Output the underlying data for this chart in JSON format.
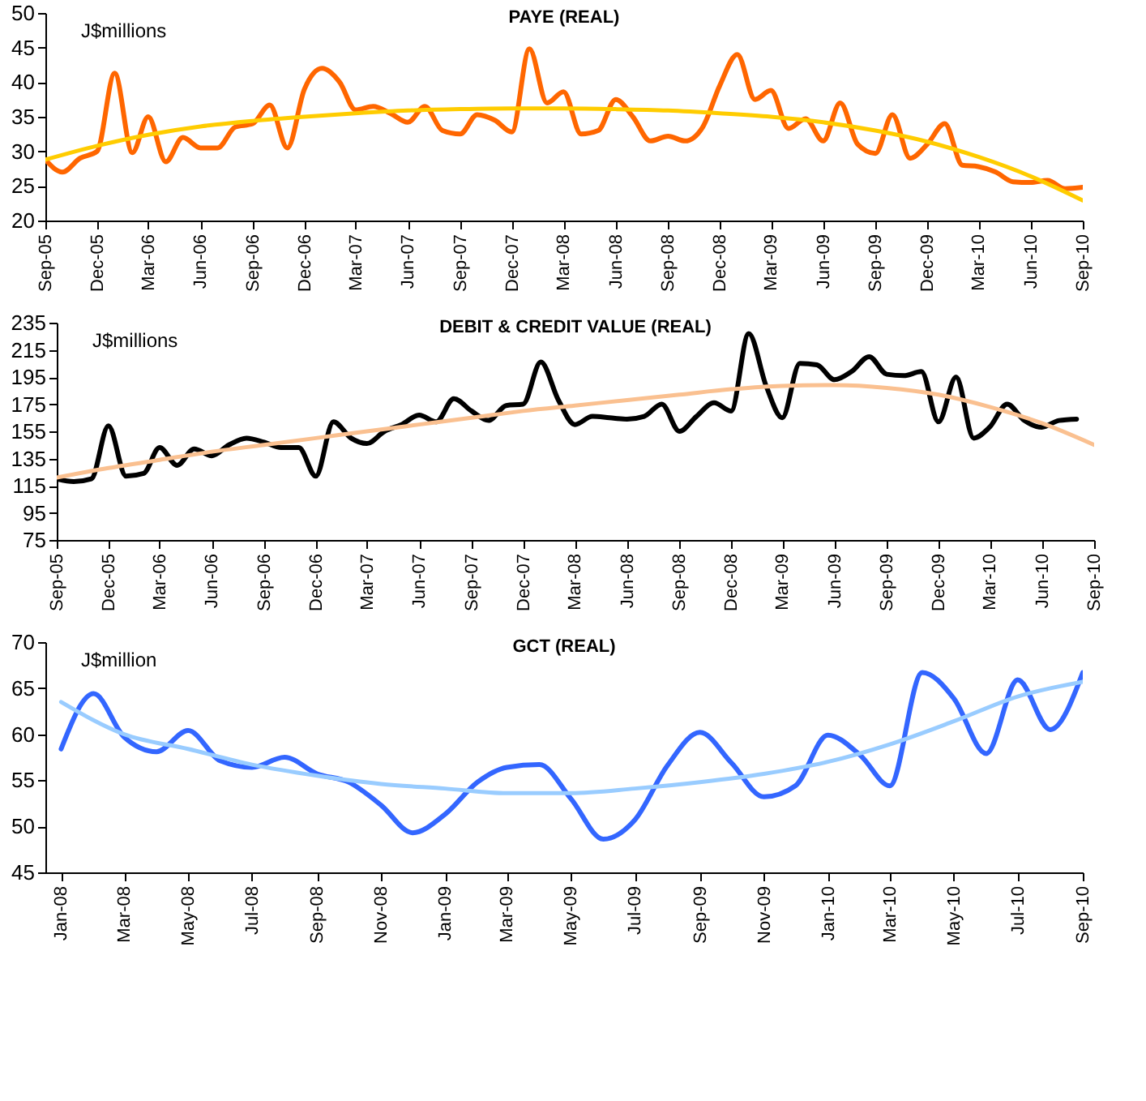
{
  "chart_data": [
    {
      "type": "line",
      "title": "PAYE (REAL)",
      "annotations": [
        "J$millions"
      ],
      "x": [
        "2005-09",
        "2005-10",
        "2005-11",
        "2005-12",
        "2006-01",
        "2006-02",
        "2006-03",
        "2006-04",
        "2006-05",
        "2006-06",
        "2006-07",
        "2006-08",
        "2006-09",
        "2006-10",
        "2006-11",
        "2006-12",
        "2007-01",
        "2007-02",
        "2007-03",
        "2007-04",
        "2007-05",
        "2007-06",
        "2007-07",
        "2007-08",
        "2007-09",
        "2007-10",
        "2007-11",
        "2007-12",
        "2008-01",
        "2008-02",
        "2008-03",
        "2008-04",
        "2008-05",
        "2008-06",
        "2008-07",
        "2008-08",
        "2008-09",
        "2008-10",
        "2008-11",
        "2008-12",
        "2009-01",
        "2009-02",
        "2009-03",
        "2009-04",
        "2009-05",
        "2009-06",
        "2009-07",
        "2009-08",
        "2009-09",
        "2009-10",
        "2009-11",
        "2009-12",
        "2010-01",
        "2010-02",
        "2010-03",
        "2010-04",
        "2010-05",
        "2010-06",
        "2010-07",
        "2010-08",
        "2010-09"
      ],
      "series": [
        {
          "color": "#ff6600",
          "values": [
            28.8,
            27,
            29,
            30,
            41.3,
            29.8,
            35,
            28.5,
            32,
            30.5,
            30.5,
            33.5,
            34,
            36.7,
            30.5,
            39,
            42,
            40,
            36,
            36.5,
            35.5,
            34.2,
            36.5,
            33,
            32.5,
            35.3,
            34.5,
            32.8,
            44.8,
            37,
            38.6,
            32.5,
            33,
            37.5,
            35,
            31.5,
            32.2,
            31.5,
            33.5,
            39.5,
            44,
            37.5,
            38.8,
            33.3,
            34.7,
            31.5,
            37,
            31,
            29.7,
            35.3,
            29,
            31,
            34,
            28,
            27.8,
            27,
            25.6,
            25.5,
            25.8,
            24.6,
            24.8
          ]
        },
        {
          "type": "line",
          "color": "#ffcc00",
          "x": [
            "2005-09",
            "2005-12",
            "2006-03",
            "2006-06",
            "2006-09",
            "2006-12",
            "2007-03",
            "2007-06",
            "2007-09",
            "2007-12",
            "2008-03",
            "2008-06",
            "2008-09",
            "2008-12",
            "2009-03",
            "2009-06",
            "2009-09",
            "2009-12",
            "2010-03",
            "2010-06",
            "2010-09"
          ],
          "values": [
            28.8,
            30.8,
            32.4,
            33.6,
            34.4,
            35,
            35.5,
            35.9,
            36.1,
            36.2,
            36.2,
            36.1,
            35.9,
            35.5,
            35,
            34.2,
            33,
            31.4,
            29.2,
            26.4,
            22.9
          ]
        }
      ],
      "xlim": [
        "2005-09",
        "2010-09"
      ],
      "xticks": [
        {
          "value": "2005-09",
          "label": "Sep-05"
        },
        {
          "value": "2005-12",
          "label": "Dec-05"
        },
        {
          "value": "2006-03",
          "label": "Mar-06"
        },
        {
          "value": "2006-06",
          "label": "Jun-06"
        },
        {
          "value": "2006-09",
          "label": "Sep-06"
        },
        {
          "value": "2006-12",
          "label": "Dec-06"
        },
        {
          "value": "2007-03",
          "label": "Mar-07"
        },
        {
          "value": "2007-06",
          "label": "Jun-07"
        },
        {
          "value": "2007-09",
          "label": "Sep-07"
        },
        {
          "value": "2007-12",
          "label": "Dec-07"
        },
        {
          "value": "2008-03",
          "label": "Mar-08"
        },
        {
          "value": "2008-06",
          "label": "Jun-08"
        },
        {
          "value": "2008-09",
          "label": "Sep-08"
        },
        {
          "value": "2008-12",
          "label": "Dec-08"
        },
        {
          "value": "2009-03",
          "label": "Mar-09"
        },
        {
          "value": "2009-06",
          "label": "Jun-09"
        },
        {
          "value": "2009-09",
          "label": "Sep-09"
        },
        {
          "value": "2009-12",
          "label": "Dec-09"
        },
        {
          "value": "2010-03",
          "label": "Mar-10"
        },
        {
          "value": "2010-06",
          "label": "Jun-10"
        },
        {
          "value": "2010-09",
          "label": "Sep-10"
        }
      ],
      "ylim": [
        20,
        50
      ],
      "yticks": [
        20,
        25,
        30,
        35,
        40,
        45,
        50
      ]
    },
    {
      "type": "line",
      "title": "DEBIT & CREDIT VALUE (REAL)",
      "annotations": [
        "J$millions"
      ],
      "x": [
        "2005-09",
        "2005-10",
        "2005-11",
        "2005-12",
        "2006-01",
        "2006-02",
        "2006-03",
        "2006-04",
        "2006-05",
        "2006-06",
        "2006-07",
        "2006-08",
        "2006-09",
        "2006-10",
        "2006-11",
        "2006-12",
        "2007-01",
        "2007-02",
        "2007-03",
        "2007-04",
        "2007-05",
        "2007-06",
        "2007-07",
        "2007-08",
        "2007-09",
        "2007-10",
        "2007-11",
        "2007-12",
        "2008-01",
        "2008-02",
        "2008-03",
        "2008-04",
        "2008-05",
        "2008-06",
        "2008-07",
        "2008-08",
        "2008-09",
        "2008-10",
        "2008-11",
        "2008-12",
        "2009-01",
        "2009-02",
        "2009-03",
        "2009-04",
        "2009-05",
        "2009-06",
        "2009-07",
        "2009-08",
        "2009-09",
        "2009-10",
        "2009-11",
        "2009-12",
        "2010-01",
        "2010-02",
        "2010-03",
        "2010-04",
        "2010-05",
        "2010-06",
        "2010-07",
        "2010-08"
      ],
      "series": [
        {
          "color": "#000000",
          "values": [
            120,
            118,
            120,
            159,
            122,
            124,
            143,
            130,
            142,
            137,
            145,
            150,
            147,
            143,
            143,
            122,
            162,
            150,
            146,
            155,
            160,
            167,
            162,
            179,
            170,
            163,
            174,
            175,
            206,
            178,
            160,
            166,
            165,
            164,
            166,
            175,
            155,
            166,
            176,
            170,
            227,
            188,
            165,
            205,
            204,
            193,
            199,
            210,
            197,
            196,
            199,
            162,
            195,
            150,
            158,
            175,
            163,
            158,
            163,
            164
          ]
        },
        {
          "type": "line",
          "color": "#fac090",
          "x": [
            "2005-09",
            "2005-12",
            "2006-03",
            "2006-06",
            "2006-09",
            "2006-12",
            "2007-03",
            "2007-06",
            "2007-09",
            "2007-12",
            "2008-03",
            "2008-06",
            "2008-09",
            "2008-12",
            "2009-03",
            "2009-06",
            "2009-09",
            "2009-12",
            "2010-03",
            "2010-06",
            "2010-09"
          ],
          "values": [
            121,
            128,
            134,
            140,
            145,
            150,
            155,
            160,
            165,
            170,
            174,
            178,
            182,
            186,
            188.5,
            189,
            187,
            182,
            173,
            161,
            145
          ]
        }
      ],
      "xlim": [
        "2005-09",
        "2010-09"
      ],
      "xticks": [
        {
          "value": "2005-09",
          "label": "Sep-05"
        },
        {
          "value": "2005-12",
          "label": "Dec-05"
        },
        {
          "value": "2006-03",
          "label": "Mar-06"
        },
        {
          "value": "2006-06",
          "label": "Jun-06"
        },
        {
          "value": "2006-09",
          "label": "Sep-06"
        },
        {
          "value": "2006-12",
          "label": "Dec-06"
        },
        {
          "value": "2007-03",
          "label": "Mar-07"
        },
        {
          "value": "2007-06",
          "label": "Jun-07"
        },
        {
          "value": "2007-09",
          "label": "Sep-07"
        },
        {
          "value": "2007-12",
          "label": "Dec-07"
        },
        {
          "value": "2008-03",
          "label": "Mar-08"
        },
        {
          "value": "2008-06",
          "label": "Jun-08"
        },
        {
          "value": "2008-09",
          "label": "Sep-08"
        },
        {
          "value": "2008-12",
          "label": "Dec-08"
        },
        {
          "value": "2009-03",
          "label": "Mar-09"
        },
        {
          "value": "2009-06",
          "label": "Jun-09"
        },
        {
          "value": "2009-09",
          "label": "Sep-09"
        },
        {
          "value": "2009-12",
          "label": "Dec-09"
        },
        {
          "value": "2010-03",
          "label": "Mar-10"
        },
        {
          "value": "2010-06",
          "label": "Jun-10"
        },
        {
          "value": "2010-09",
          "label": "Sep-10"
        }
      ],
      "ylim": [
        75,
        235
      ],
      "yticks": [
        75,
        95,
        115,
        135,
        155,
        175,
        195,
        215,
        235
      ]
    },
    {
      "type": "line",
      "title": "GCT (REAL)",
      "annotations": [
        "J$million"
      ],
      "x": [
        "2008-01",
        "2008-02",
        "2008-03",
        "2008-04",
        "2008-05",
        "2008-06",
        "2008-07",
        "2008-08",
        "2008-09",
        "2008-10",
        "2008-11",
        "2008-12",
        "2009-01",
        "2009-02",
        "2009-03",
        "2009-04",
        "2009-05",
        "2009-06",
        "2009-07",
        "2009-08",
        "2009-09",
        "2009-10",
        "2009-11",
        "2009-12",
        "2010-01",
        "2010-02",
        "2010-03",
        "2010-04",
        "2010-05",
        "2010-06",
        "2010-07",
        "2010-08",
        "2010-09"
      ],
      "series": [
        {
          "color": "#3366ff",
          "values": [
            58.4,
            64.4,
            59.7,
            58.1,
            60.4,
            57.1,
            56.4,
            57.5,
            55.7,
            54.8,
            52.3,
            49.3,
            51.3,
            54.8,
            56.4,
            56.7,
            53,
            48.6,
            50.7,
            56.6,
            60.2,
            56.9,
            53.2,
            54.4,
            59.9,
            57.7,
            54.4,
            66.7,
            63.9,
            57.9,
            65.9,
            60.5,
            66.7
          ]
        },
        {
          "type": "line",
          "color": "#99ccff",
          "x": [
            "2008-01",
            "2008-03",
            "2008-05",
            "2008-07",
            "2008-09",
            "2008-11",
            "2009-01",
            "2009-03",
            "2009-05",
            "2009-07",
            "2009-09",
            "2009-11",
            "2010-01",
            "2010-03",
            "2010-05",
            "2010-07",
            "2010-09"
          ],
          "values": [
            63.5,
            60,
            58.4,
            56.7,
            55.5,
            54.6,
            54.1,
            53.6,
            53.6,
            54.1,
            54.8,
            55.7,
            57,
            58.9,
            61.4,
            64.1,
            65.7
          ]
        }
      ],
      "xlim": [
        "2007-12-17",
        "2010-09"
      ],
      "xticks": [
        {
          "value": "2008-01",
          "label": "Jan-08"
        },
        {
          "value": "2008-03",
          "label": "Mar-08"
        },
        {
          "value": "2008-05",
          "label": "May-08"
        },
        {
          "value": "2008-07",
          "label": "Jul-08"
        },
        {
          "value": "2008-09",
          "label": "Sep-08"
        },
        {
          "value": "2008-11",
          "label": "Nov-08"
        },
        {
          "value": "2009-01",
          "label": "Jan-09"
        },
        {
          "value": "2009-03",
          "label": "Mar-09"
        },
        {
          "value": "2009-05",
          "label": "May-09"
        },
        {
          "value": "2009-07",
          "label": "Jul-09"
        },
        {
          "value": "2009-09",
          "label": "Sep-09"
        },
        {
          "value": "2009-11",
          "label": "Nov-09"
        },
        {
          "value": "2010-01",
          "label": "Jan-10"
        },
        {
          "value": "2010-03",
          "label": "Mar-10"
        },
        {
          "value": "2010-05",
          "label": "May-10"
        },
        {
          "value": "2010-07",
          "label": "Jul-10"
        },
        {
          "value": "2010-09",
          "label": "Sep-10"
        }
      ],
      "ylim": [
        45,
        70
      ],
      "yticks": [
        45,
        50,
        55,
        60,
        65,
        70
      ]
    }
  ]
}
